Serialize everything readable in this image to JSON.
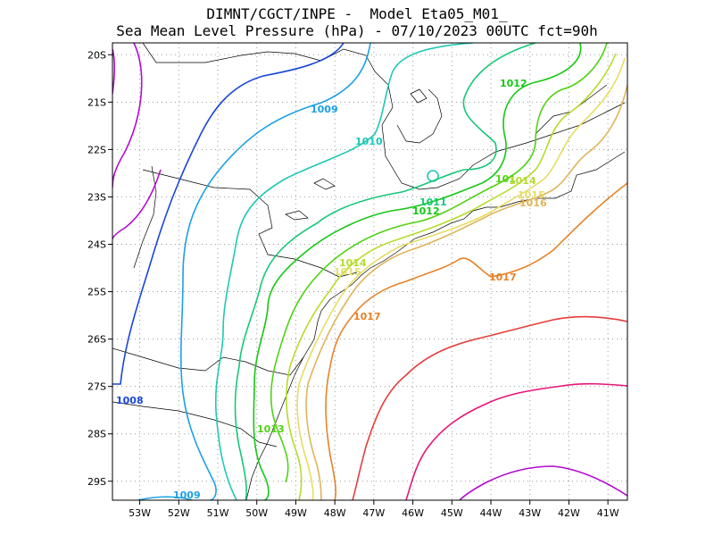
{
  "title": {
    "line1": "DIMNT/CGCT/INPE -  Model Eta05_M01_",
    "line2": "Sea Mean Level Pressure (hPa) - 07/10/2023 00UTC fct=90h"
  },
  "axes": {
    "x_ticks": [
      "53W",
      "52W",
      "51W",
      "50W",
      "49W",
      "48W",
      "47W",
      "46W",
      "45W",
      "44W",
      "43W",
      "42W",
      "41W"
    ],
    "y_ticks": [
      "20S",
      "21S",
      "22S",
      "23S",
      "24S",
      "25S",
      "26S",
      "27S",
      "28S",
      "29S"
    ],
    "lon_range": [
      -53.7,
      -40.5
    ],
    "lat_range": [
      -29.4,
      -19.75
    ],
    "grid": "dotted"
  },
  "colors": {
    "1008": "#1a46d8",
    "1009": "#1aa0e6",
    "1010": "#1ec8b4",
    "1011": "#14c878",
    "1012": "#14c814",
    "1013": "#50d214",
    "1014": "#b4dc28",
    "1015": "#e6dc64",
    "1016": "#e0b45a",
    "1017": "#e68228",
    "1018": "#e63c3c",
    "1019": "#e61478",
    "1020": "#b40ad2"
  },
  "labels": {
    "l1008": "1008",
    "l1009a": "1009",
    "l1009b": "1009",
    "l1010": "1010",
    "l1011": "1011",
    "l1012a": "1012",
    "l1012b": "1012",
    "l1013": "1013",
    "l1014a": "1014",
    "l1014b": "1014",
    "l1015a": "1015",
    "l1015b": "1015",
    "l1016": "1016",
    "l1017a": "1017",
    "l1017b": "1017",
    "l101x": "101"
  }
}
